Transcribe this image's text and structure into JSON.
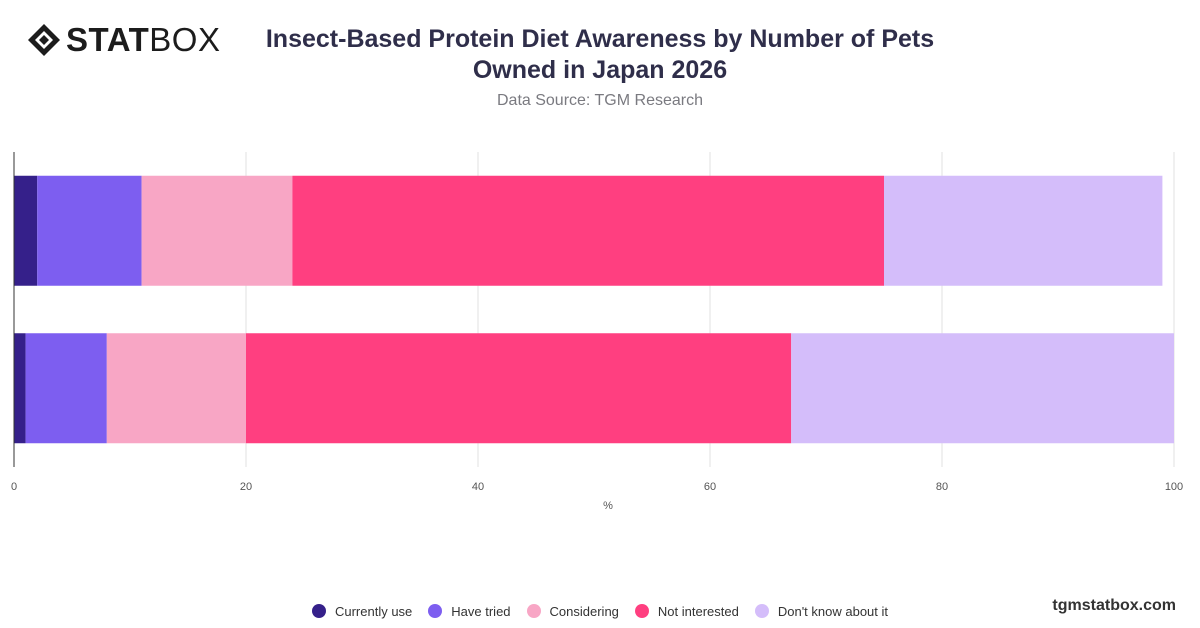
{
  "brand": {
    "logo_bold": "STAT",
    "logo_light": "BOX",
    "watermark": "tgmstatbox.com"
  },
  "chart_data": {
    "type": "bar",
    "orientation": "horizontal",
    "stacked": true,
    "title": "Insect-Based Protein Diet Awareness by Number of Pets Owned in Japan 2026",
    "subtitle": "Data Source: TGM Research",
    "xlabel": "%",
    "ylabel": "",
    "xlim": [
      0,
      100
    ],
    "xticks": [
      0,
      20,
      40,
      60,
      80,
      100
    ],
    "grid": true,
    "legend_position": "bottom",
    "categories": [
      "",
      ""
    ],
    "series": [
      {
        "name": "Currently use",
        "color": "#35208a",
        "values": [
          2,
          1
        ]
      },
      {
        "name": "Have tried",
        "color": "#7d5ef0",
        "values": [
          9,
          7
        ]
      },
      {
        "name": "Considering",
        "color": "#f8a6c5",
        "values": [
          13,
          12
        ]
      },
      {
        "name": "Not interested",
        "color": "#ff3f80",
        "values": [
          51,
          47
        ]
      },
      {
        "name": "Don't know about it",
        "color": "#d4bdfa",
        "values": [
          24,
          33
        ]
      }
    ]
  }
}
